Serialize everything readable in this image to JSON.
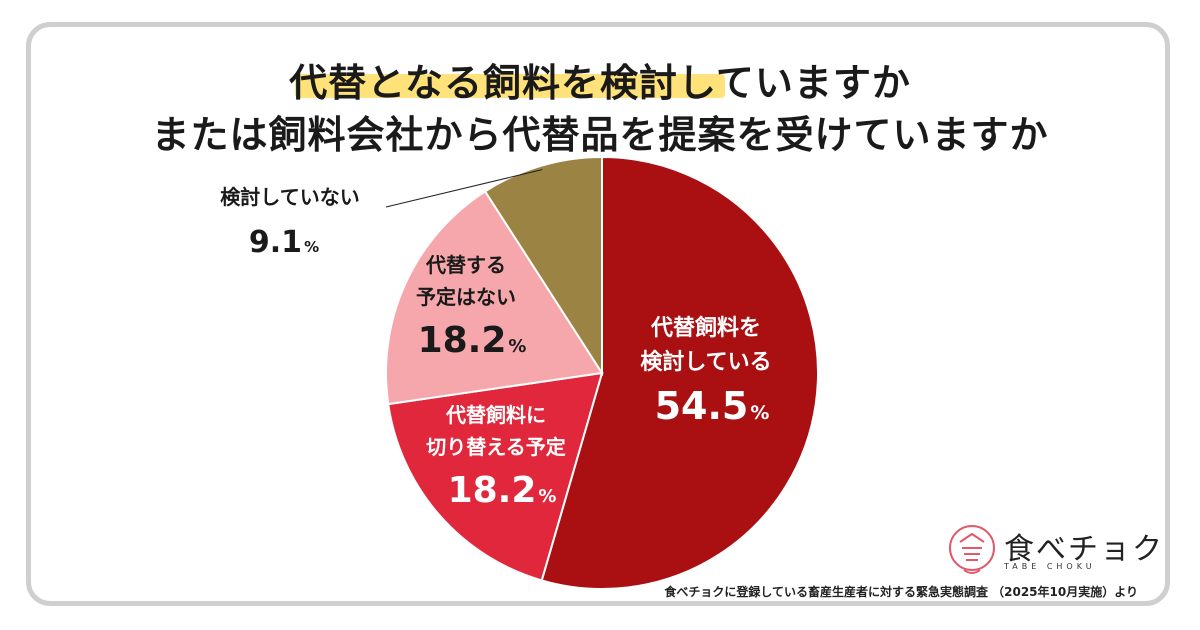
{
  "chart_data": {
    "type": "pie",
    "title_line1": "代替となる飼料を検討していますか",
    "title_line2": "または飼料会社から代替品を提案を受けていますか",
    "slices": [
      {
        "label_lines": [
          "代替飼料を",
          "検討している"
        ],
        "value": 54.5,
        "color": "#aa0f12",
        "text_color": "#ffffff"
      },
      {
        "label_lines": [
          "代替飼料に",
          "切り替える予定"
        ],
        "value": 18.2,
        "color": "#e0273b",
        "text_color": "#ffffff"
      },
      {
        "label_lines": [
          "代替する",
          "予定はない"
        ],
        "value": 18.2,
        "color": "#f6a7ac",
        "text_color": "#1a1a1a"
      },
      {
        "label_lines": [
          "検討していない"
        ],
        "value": 9.1,
        "color": "#9b8343",
        "text_color": "#1a1a1a"
      }
    ],
    "unit": "%",
    "start_angle_deg": 0,
    "direction": "clockwise"
  },
  "credit": "食べチョクに登録している畜産生産者に対する緊急実態調査 （2025年10月実施）より",
  "logo": {
    "text": "食べチョク",
    "sub": "TABE CHOKU"
  }
}
